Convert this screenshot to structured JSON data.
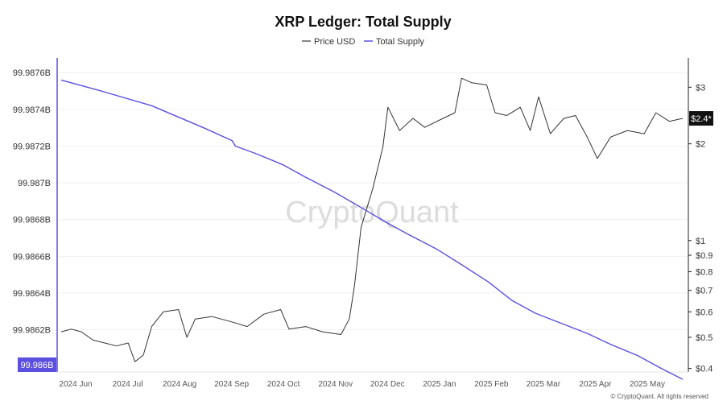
{
  "chart_data": {
    "type": "line",
    "title": "XRP Ledger: Total Supply",
    "legend": {
      "placement": "top-center",
      "entries": [
        "Price USD",
        "Total Supply"
      ]
    },
    "x_ticks": [
      "2024 Jun",
      "2024 Jul",
      "2024 Aug",
      "2024 Sep",
      "2024 Oct",
      "2024 Nov",
      "2024 Dec",
      "2025 Jan",
      "2025 Feb",
      "2025 Mar",
      "2025 Apr",
      "2025 May"
    ],
    "x_range": [
      "2024-05-22",
      "2025-05-28"
    ],
    "y_left": {
      "range": [
        99.98597,
        99.98768
      ],
      "ticks": [
        {
          "value": 99.9862,
          "label": "99.9862B"
        },
        {
          "value": 99.9864,
          "label": "99.9864B"
        },
        {
          "value": 99.9866,
          "label": "99.9866B"
        },
        {
          "value": 99.9868,
          "label": "99.9868B"
        },
        {
          "value": 99.987,
          "label": "99.987B"
        },
        {
          "value": 99.9872,
          "label": "99.9872B"
        },
        {
          "value": 99.9874,
          "label": "99.9874B"
        },
        {
          "value": 99.9876,
          "label": "99.9876B"
        }
      ],
      "current_label": "99.986B",
      "current_value": 99.986
    },
    "y_right": {
      "scale": "log",
      "range": [
        0.39,
        3.7
      ],
      "ticks": [
        {
          "value": 0.4,
          "label": "$0.4"
        },
        {
          "value": 0.5,
          "label": "$0.5"
        },
        {
          "value": 0.6,
          "label": "$0.6"
        },
        {
          "value": 0.7,
          "label": "$0.7"
        },
        {
          "value": 0.8,
          "label": "$0.8"
        },
        {
          "value": 0.9,
          "label": "$0.9"
        },
        {
          "value": 1,
          "label": "$1"
        },
        {
          "value": 2,
          "label": "$2"
        },
        {
          "value": 3,
          "label": "$3"
        }
      ],
      "current_label": "$2.4*",
      "current_value": 2.4
    },
    "grid": "horizontal",
    "series": [
      {
        "name": "Total Supply",
        "axis": "left",
        "color": "#5b4fe0",
        "points": [
          [
            "2024-05-22",
            99.98756
          ],
          [
            "2024-06-15",
            99.9875
          ],
          [
            "2024-07-15",
            99.98742
          ],
          [
            "2024-08-15",
            99.9873
          ],
          [
            "2024-09-01",
            99.98723
          ],
          [
            "2024-09-03",
            99.9872
          ],
          [
            "2024-09-15",
            99.98716
          ],
          [
            "2024-10-01",
            99.9871
          ],
          [
            "2024-10-15",
            99.98703
          ],
          [
            "2024-11-01",
            99.98695
          ],
          [
            "2024-11-20",
            99.98685
          ],
          [
            "2024-12-01",
            99.98679
          ],
          [
            "2024-12-15",
            99.98672
          ],
          [
            "2025-01-01",
            99.98664
          ],
          [
            "2025-01-15",
            99.98656
          ],
          [
            "2025-02-01",
            99.98646
          ],
          [
            "2025-02-15",
            99.98636
          ],
          [
            "2025-03-01",
            99.98629
          ],
          [
            "2025-03-15",
            99.98624
          ],
          [
            "2025-04-01",
            99.98618
          ],
          [
            "2025-04-15",
            99.98612
          ],
          [
            "2025-05-01",
            99.98606
          ],
          [
            "2025-05-15",
            99.98599
          ],
          [
            "2025-05-28",
            99.98593
          ]
        ]
      },
      {
        "name": "Price USD",
        "axis": "right",
        "color": "#333333",
        "points": [
          [
            "2024-05-22",
            0.52
          ],
          [
            "2024-05-28",
            0.53
          ],
          [
            "2024-06-03",
            0.52
          ],
          [
            "2024-06-10",
            0.49
          ],
          [
            "2024-06-17",
            0.48
          ],
          [
            "2024-06-24",
            0.47
          ],
          [
            "2024-07-01",
            0.48
          ],
          [
            "2024-07-05",
            0.42
          ],
          [
            "2024-07-10",
            0.44
          ],
          [
            "2024-07-15",
            0.54
          ],
          [
            "2024-07-22",
            0.6
          ],
          [
            "2024-07-31",
            0.61
          ],
          [
            "2024-08-05",
            0.5
          ],
          [
            "2024-08-10",
            0.57
          ],
          [
            "2024-08-20",
            0.58
          ],
          [
            "2024-08-31",
            0.56
          ],
          [
            "2024-09-10",
            0.54
          ],
          [
            "2024-09-20",
            0.59
          ],
          [
            "2024-09-30",
            0.61
          ],
          [
            "2024-10-05",
            0.53
          ],
          [
            "2024-10-15",
            0.54
          ],
          [
            "2024-10-25",
            0.52
          ],
          [
            "2024-11-05",
            0.51
          ],
          [
            "2024-11-10",
            0.57
          ],
          [
            "2024-11-13",
            0.72
          ],
          [
            "2024-11-17",
            1.1
          ],
          [
            "2024-11-24",
            1.45
          ],
          [
            "2024-11-30",
            1.95
          ],
          [
            "2024-12-03",
            2.6
          ],
          [
            "2024-12-10",
            2.2
          ],
          [
            "2024-12-18",
            2.4
          ],
          [
            "2024-12-25",
            2.25
          ],
          [
            "2025-01-05",
            2.4
          ],
          [
            "2025-01-12",
            2.5
          ],
          [
            "2025-01-16",
            3.2
          ],
          [
            "2025-01-22",
            3.1
          ],
          [
            "2025-01-31",
            3.05
          ],
          [
            "2025-02-05",
            2.5
          ],
          [
            "2025-02-12",
            2.45
          ],
          [
            "2025-02-20",
            2.6
          ],
          [
            "2025-02-26",
            2.2
          ],
          [
            "2025-03-03",
            2.8
          ],
          [
            "2025-03-10",
            2.15
          ],
          [
            "2025-03-18",
            2.4
          ],
          [
            "2025-03-25",
            2.45
          ],
          [
            "2025-04-01",
            2.1
          ],
          [
            "2025-04-07",
            1.8
          ],
          [
            "2025-04-15",
            2.1
          ],
          [
            "2025-04-25",
            2.2
          ],
          [
            "2025-05-05",
            2.15
          ],
          [
            "2025-05-12",
            2.5
          ],
          [
            "2025-05-20",
            2.35
          ],
          [
            "2025-05-28",
            2.4
          ]
        ]
      }
    ],
    "watermark": "CryptoQuant",
    "copyright": "© CryptoQuant. All rights reserved"
  }
}
